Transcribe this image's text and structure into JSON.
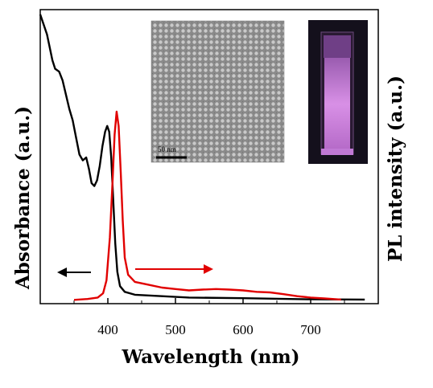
{
  "chart_data": {
    "type": "line",
    "xlabel": "Wavelength (nm)",
    "ylabel_left": "Absorbance (a.u.)",
    "ylabel_right": "PL intensity (a.u.)",
    "xlim": [
      300,
      800
    ],
    "ylim": [
      0,
      1.0
    ],
    "xticks": [
      400,
      500,
      600,
      700
    ],
    "grid": false,
    "series": [
      {
        "color": "#000000",
        "axis": "left",
        "points": [
          [
            300,
            1.0
          ],
          [
            310,
            0.93
          ],
          [
            318,
            0.84
          ],
          [
            322,
            0.81
          ],
          [
            328,
            0.8
          ],
          [
            333,
            0.77
          ],
          [
            338,
            0.72
          ],
          [
            343,
            0.67
          ],
          [
            348,
            0.63
          ],
          [
            353,
            0.57
          ],
          [
            358,
            0.51
          ],
          [
            363,
            0.49
          ],
          [
            368,
            0.5
          ],
          [
            372,
            0.46
          ],
          [
            376,
            0.41
          ],
          [
            380,
            0.4
          ],
          [
            384,
            0.42
          ],
          [
            388,
            0.47
          ],
          [
            392,
            0.54
          ],
          [
            396,
            0.59
          ],
          [
            399,
            0.61
          ],
          [
            402,
            0.59
          ],
          [
            405,
            0.5
          ],
          [
            408,
            0.35
          ],
          [
            411,
            0.2
          ],
          [
            414,
            0.1
          ],
          [
            418,
            0.05
          ],
          [
            425,
            0.03
          ],
          [
            440,
            0.02
          ],
          [
            480,
            0.015
          ],
          [
            520,
            0.01
          ],
          [
            600,
            0.008
          ],
          [
            700,
            0.004
          ],
          [
            780,
            0.003
          ]
        ]
      },
      {
        "color": "#e10000",
        "axis": "right",
        "points": [
          [
            350,
            0.002
          ],
          [
            370,
            0.005
          ],
          [
            385,
            0.01
          ],
          [
            393,
            0.025
          ],
          [
            398,
            0.07
          ],
          [
            403,
            0.22
          ],
          [
            407,
            0.42
          ],
          [
            410,
            0.58
          ],
          [
            413,
            0.66
          ],
          [
            416,
            0.61
          ],
          [
            419,
            0.45
          ],
          [
            422,
            0.28
          ],
          [
            425,
            0.15
          ],
          [
            430,
            0.09
          ],
          [
            440,
            0.065
          ],
          [
            460,
            0.055
          ],
          [
            480,
            0.045
          ],
          [
            500,
            0.04
          ],
          [
            520,
            0.035
          ],
          [
            540,
            0.038
          ],
          [
            560,
            0.04
          ],
          [
            580,
            0.038
          ],
          [
            600,
            0.035
          ],
          [
            620,
            0.03
          ],
          [
            640,
            0.028
          ],
          [
            660,
            0.022
          ],
          [
            680,
            0.015
          ],
          [
            700,
            0.01
          ],
          [
            720,
            0.007
          ],
          [
            745,
            0.003
          ]
        ]
      }
    ],
    "arrows": [
      {
        "color": "#000000",
        "direction": "left"
      },
      {
        "color": "#e10000",
        "direction": "right"
      }
    ],
    "insets": {
      "tem": {
        "scale_bar": "50 nm"
      },
      "photo": {
        "description_color": "#d08ae0"
      }
    }
  }
}
